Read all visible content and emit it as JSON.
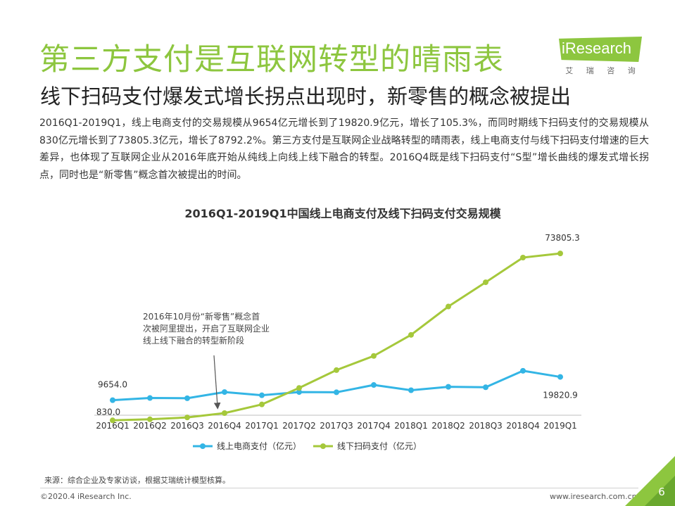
{
  "header": {
    "title": "第三方支付是互联网转型的晴雨表",
    "subtitle": "线下扫码支付爆发式增长拐点出现时，新零售的概念被提出",
    "logo_text": "iResearch",
    "logo_sub": [
      "艾",
      "瑞",
      "咨",
      "询"
    ]
  },
  "body_text": "2016Q1-2019Q1，线上电商支付的交易规模从9654亿元增长到了19820.9亿元，增长了105.3%，而同时期线下扫码支付的交易规模从830亿元增长到了73805.3亿元，增长了8792.2%。第三方支付是互联网企业战略转型的晴雨表，线上电商支付与线下扫码支付增速的巨大差异，也体现了互联网企业从2016年底开始从纯线上向线上线下融合的转型。2016Q4既是线下扫码支付“S型”增长曲线的爆发式增长拐点，同时也是“新零售”概念首次被提出的时间。",
  "chart_data": {
    "type": "line",
    "title": "2016Q1-2019Q1中国线上电商支付及线下扫码支付交易规模",
    "categories": [
      "2016Q1",
      "2016Q2",
      "2016Q3",
      "2016Q4",
      "2017Q1",
      "2017Q2",
      "2017Q3",
      "2017Q4",
      "2018Q1",
      "2018Q2",
      "2018Q3",
      "2018Q4",
      "2019Q1"
    ],
    "series": [
      {
        "name": "线上电商支付（亿元）",
        "color": "#33b5e5",
        "values": [
          9654.0,
          10600,
          10500,
          13200,
          11800,
          13200,
          13100,
          16300,
          14000,
          15500,
          15300,
          22500,
          19820.9
        ],
        "labels": {
          "0": "9654.0",
          "12": "19820.9"
        }
      },
      {
        "name": "线下扫码支付（亿元）",
        "color": "#a5c83b",
        "values": [
          830.0,
          1300,
          2100,
          4000,
          7800,
          15000,
          22800,
          29000,
          38200,
          50600,
          61200,
          72000,
          73805.3
        ],
        "labels": {
          "0": "830.0",
          "12": "73805.3"
        }
      }
    ],
    "ylim": [
      0,
      80000
    ],
    "grid": false,
    "legend": "bottom",
    "annotation": {
      "lines": [
        "2016年10月份“新零售”概念首",
        "次被阿里提出，开启了互联网企业",
        "线上线下融合的转型新阶段"
      ],
      "points_to": "2016Q4"
    }
  },
  "footer": {
    "source": "来源：综合企业及专家访谈，根据艾瑞统计模型核算。",
    "copyright": "©2020.4 iResearch Inc.",
    "website": "www.iresearch.com.cn",
    "page": "6"
  },
  "colors": {
    "accent": "#8dc63f"
  }
}
